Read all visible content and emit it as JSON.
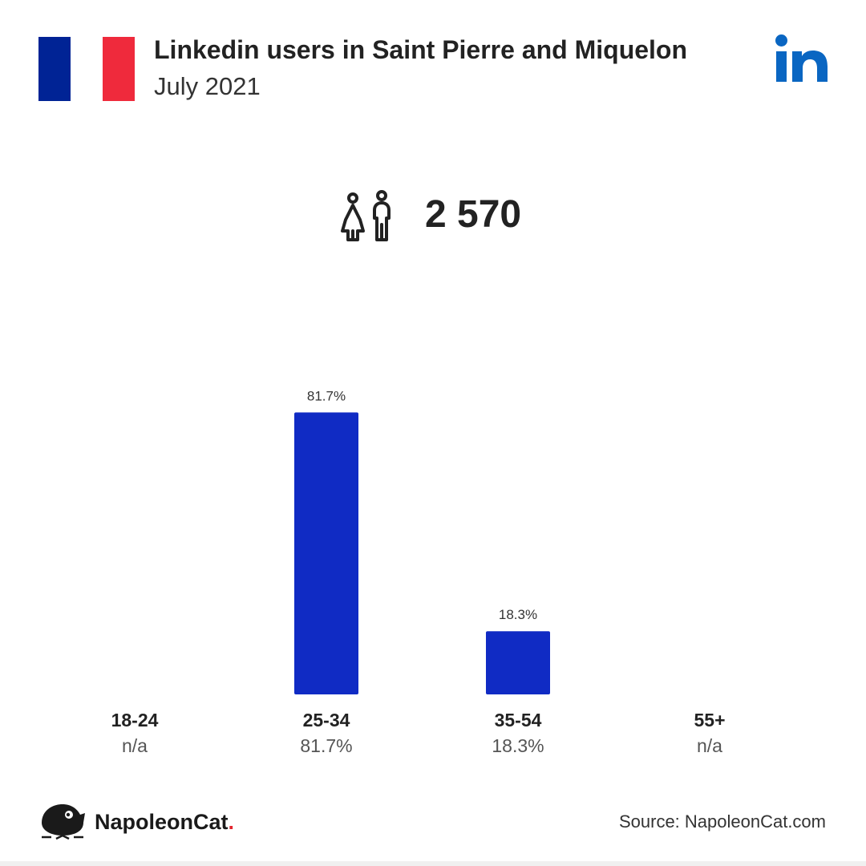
{
  "header": {
    "title": "Linkedin users in Saint Pierre and Miquelon",
    "date": "July 2021"
  },
  "flag": {
    "colors": [
      "#002395",
      "#ffffff",
      "#ef2a3c"
    ]
  },
  "brand": {
    "icon": "linkedin-icon",
    "color": "#0a66c2"
  },
  "total": {
    "icon": "people-icon",
    "value": "2 570"
  },
  "chart_data": {
    "type": "bar",
    "categories": [
      "18-24",
      "25-34",
      "35-54",
      "55+"
    ],
    "values": [
      null,
      81.7,
      18.3,
      null
    ],
    "bar_labels": [
      "",
      "81.7%",
      "18.3%",
      ""
    ],
    "value_labels": [
      "n/a",
      "81.7%",
      "18.3%",
      "n/a"
    ],
    "bar_color": "#102bc4",
    "ylim": [
      0,
      81.7
    ],
    "grid": false
  },
  "footer": {
    "logo_name": "NapoleonCat",
    "logo_dot": ".",
    "source": "Source: NapoleonCat.com"
  }
}
